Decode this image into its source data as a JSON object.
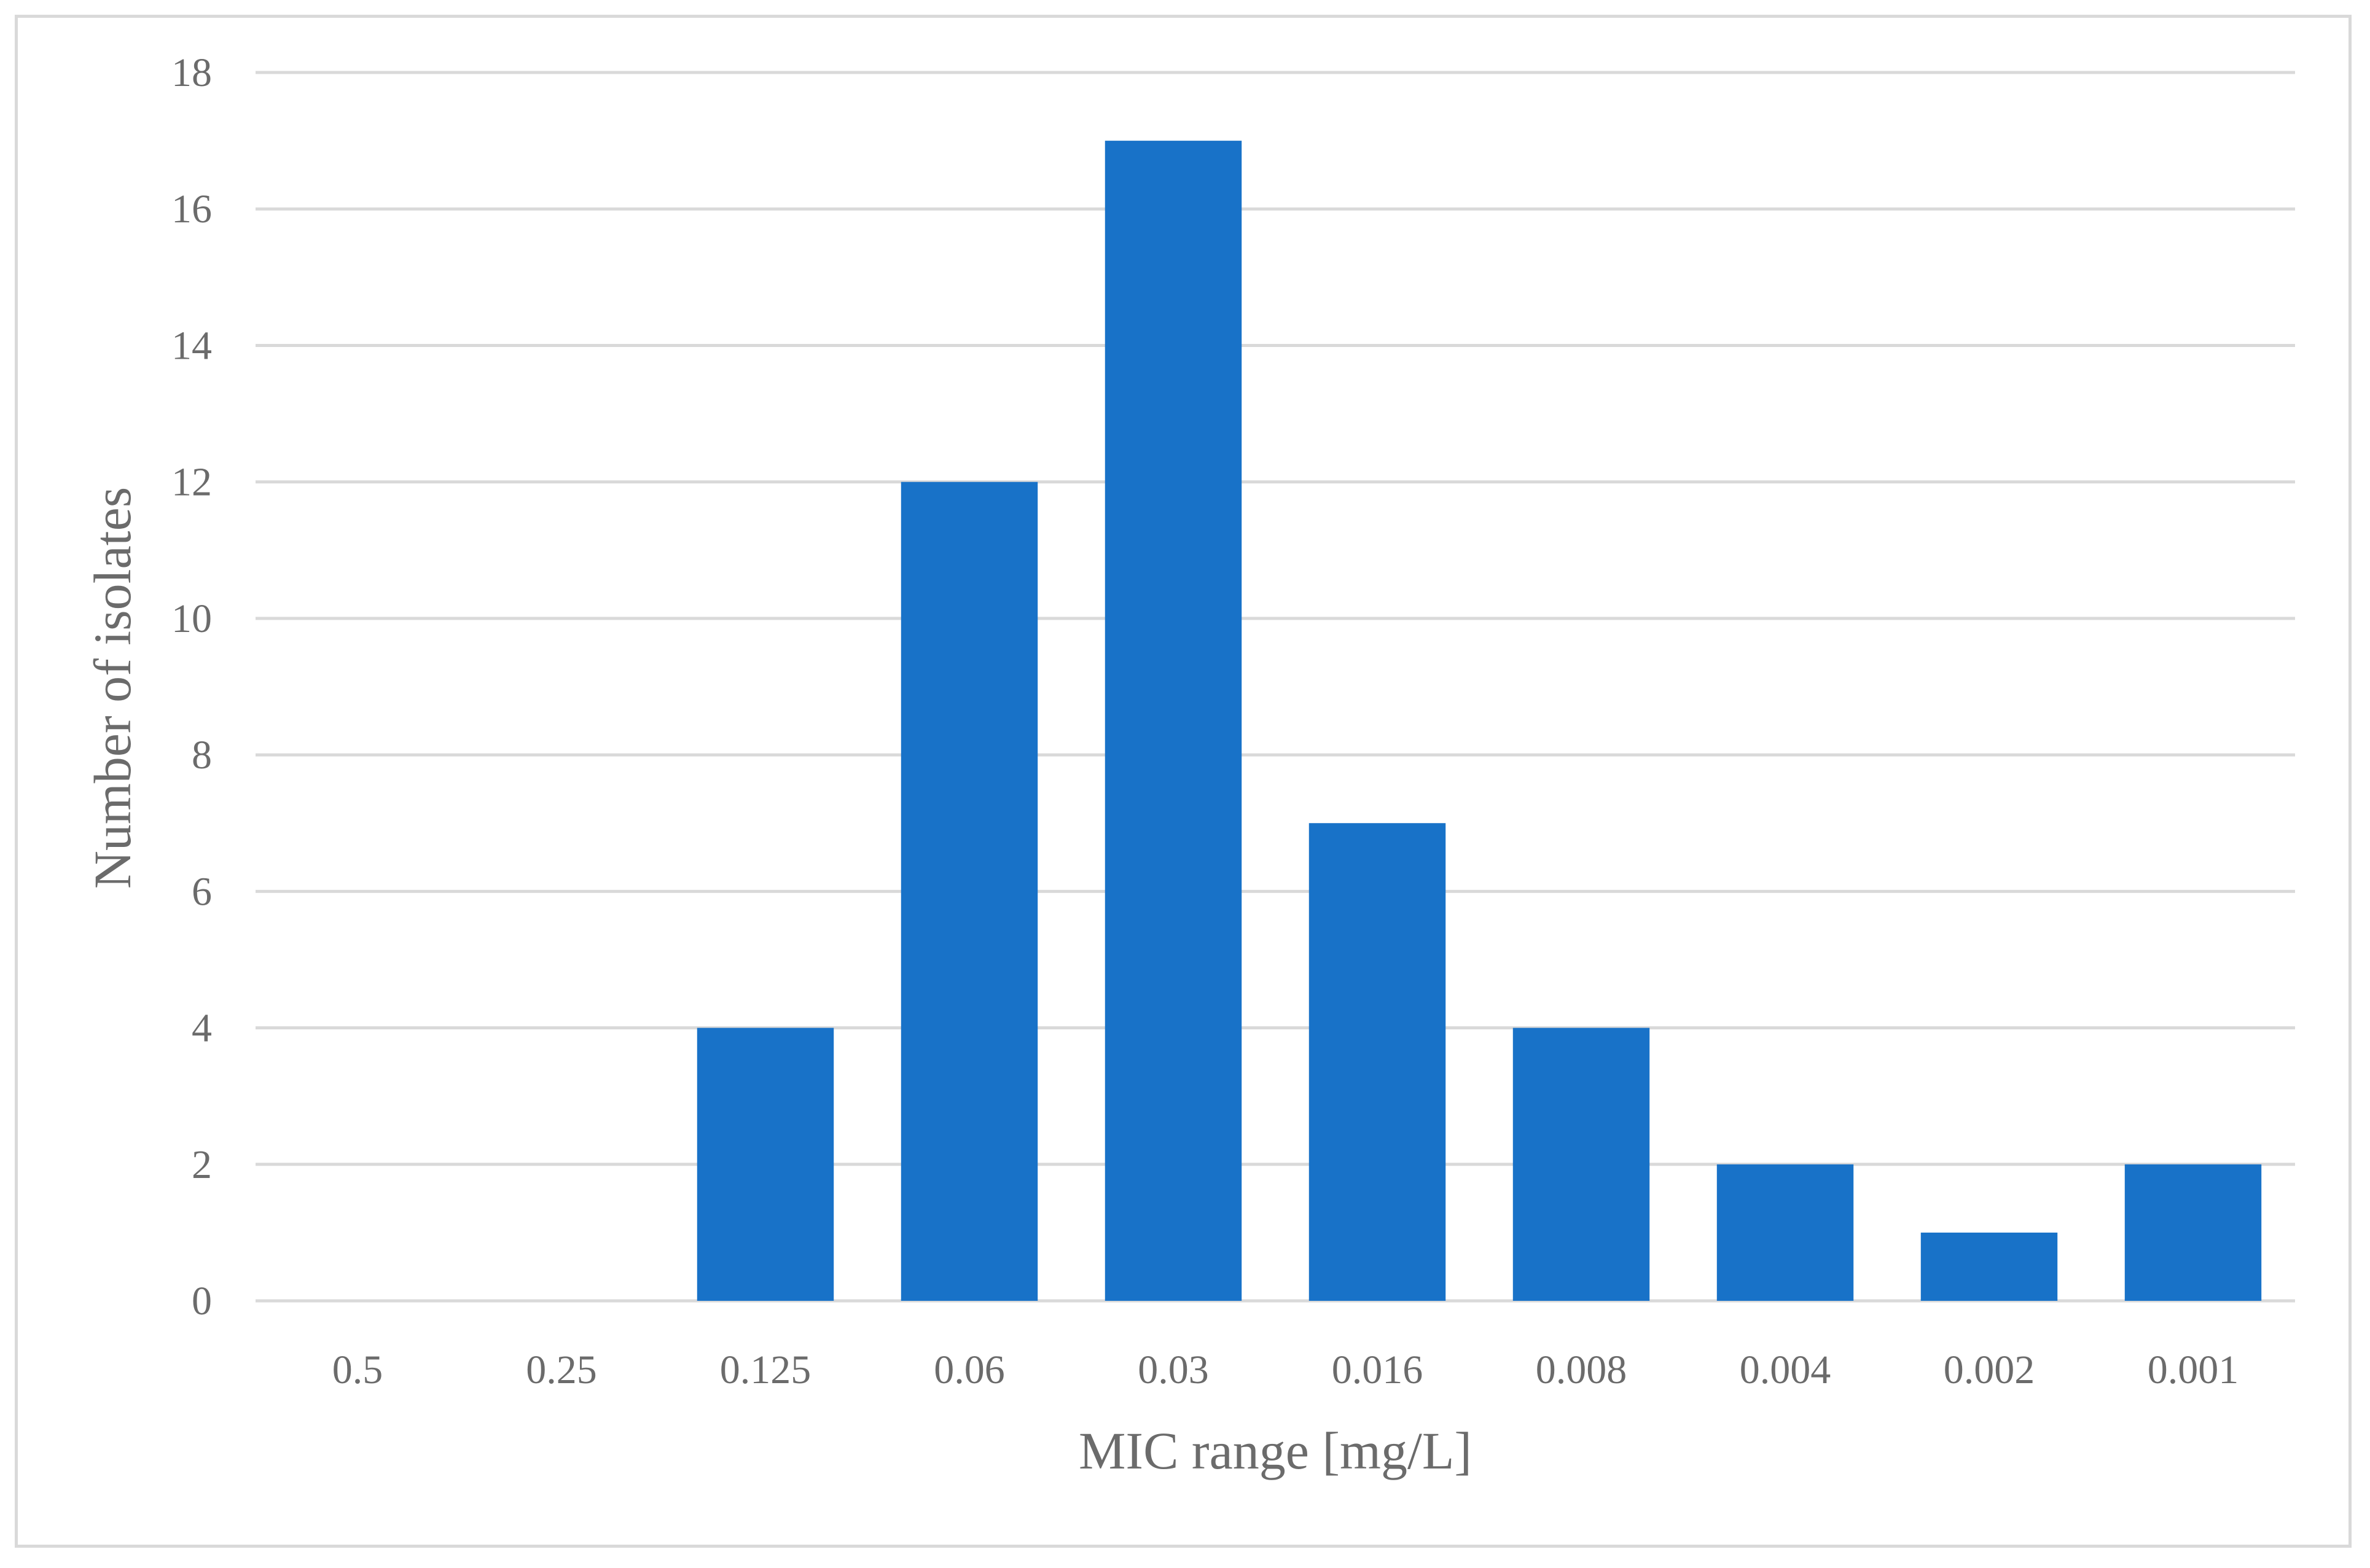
{
  "chart_data": {
    "type": "bar",
    "title": "",
    "xlabel": "MIC range [mg/L]",
    "ylabel": "Number of isolates",
    "categories": [
      "0.5",
      "0.25",
      "0.125",
      "0.06",
      "0.03",
      "0.016",
      "0.008",
      "0.004",
      "0.002",
      "0.001"
    ],
    "values": [
      0,
      0,
      4,
      12,
      17,
      7,
      4,
      2,
      1,
      2
    ],
    "ylim": [
      0,
      18
    ],
    "yticks": [
      "0",
      "2",
      "4",
      "6",
      "8",
      "10",
      "12",
      "14",
      "16",
      "18"
    ],
    "grid": true,
    "legend": "none",
    "bar_color": "#1872c8",
    "grid_color": "#d9d9d9",
    "text_color": "#6b6b6b"
  }
}
